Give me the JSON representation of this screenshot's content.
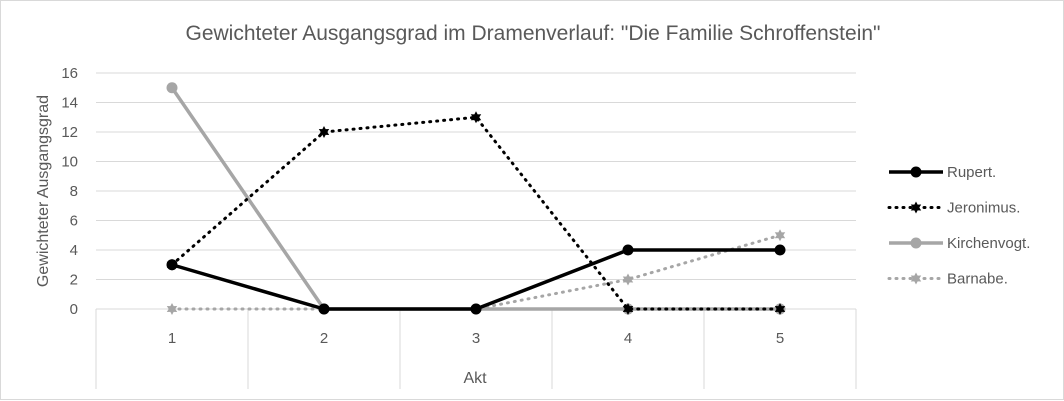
{
  "chart_data": {
    "type": "line",
    "title": "Gewichteter Ausgangsgrad im Dramenverlauf: \"Die Familie Schroffenstein\"",
    "xlabel": "Akt",
    "ylabel": "Gewichteter Ausgangsgrad",
    "categories": [
      "1",
      "2",
      "3",
      "4",
      "5"
    ],
    "ylim": [
      0,
      16
    ],
    "yticks": [
      0,
      2,
      4,
      6,
      8,
      10,
      12,
      14,
      16
    ],
    "grid": true,
    "legend_position": "right",
    "series": [
      {
        "name": "Rupert.",
        "values": [
          3,
          0,
          0,
          4,
          4
        ],
        "color": "#000000",
        "style": "solid",
        "marker": "circle"
      },
      {
        "name": "Jeronimus.",
        "values": [
          3,
          12,
          13,
          0,
          0
        ],
        "color": "#000000",
        "style": "dotted",
        "marker": "star"
      },
      {
        "name": "Kirchenvogt.",
        "values": [
          15,
          0,
          0,
          0,
          0
        ],
        "color": "#a6a6a6",
        "style": "solid",
        "marker": "circle"
      },
      {
        "name": "Barnabe.",
        "values": [
          0,
          0,
          0,
          2,
          5
        ],
        "color": "#a6a6a6",
        "style": "dotted",
        "marker": "star"
      }
    ]
  }
}
